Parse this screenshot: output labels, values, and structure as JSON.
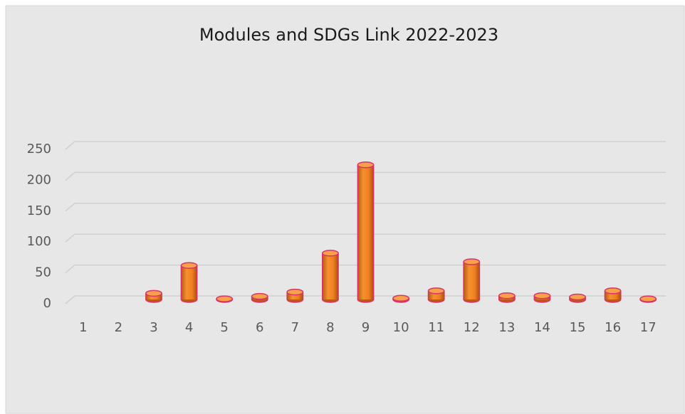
{
  "chart_data": {
    "type": "bar",
    "title": "Modules and SDGs Link 2022-2023",
    "categories": [
      "1",
      "2",
      "3",
      "4",
      "5",
      "6",
      "7",
      "8",
      "9",
      "10",
      "11",
      "12",
      "13",
      "14",
      "15",
      "16",
      "17"
    ],
    "values": [
      0,
      0,
      10,
      55,
      1,
      5,
      12,
      75,
      218,
      2,
      14,
      61,
      6,
      6,
      4,
      14,
      1
    ],
    "color": "#f07f22",
    "ylim": [
      0,
      250
    ],
    "yticks": [
      0,
      50,
      100,
      150,
      200,
      250
    ],
    "grid": true
  }
}
